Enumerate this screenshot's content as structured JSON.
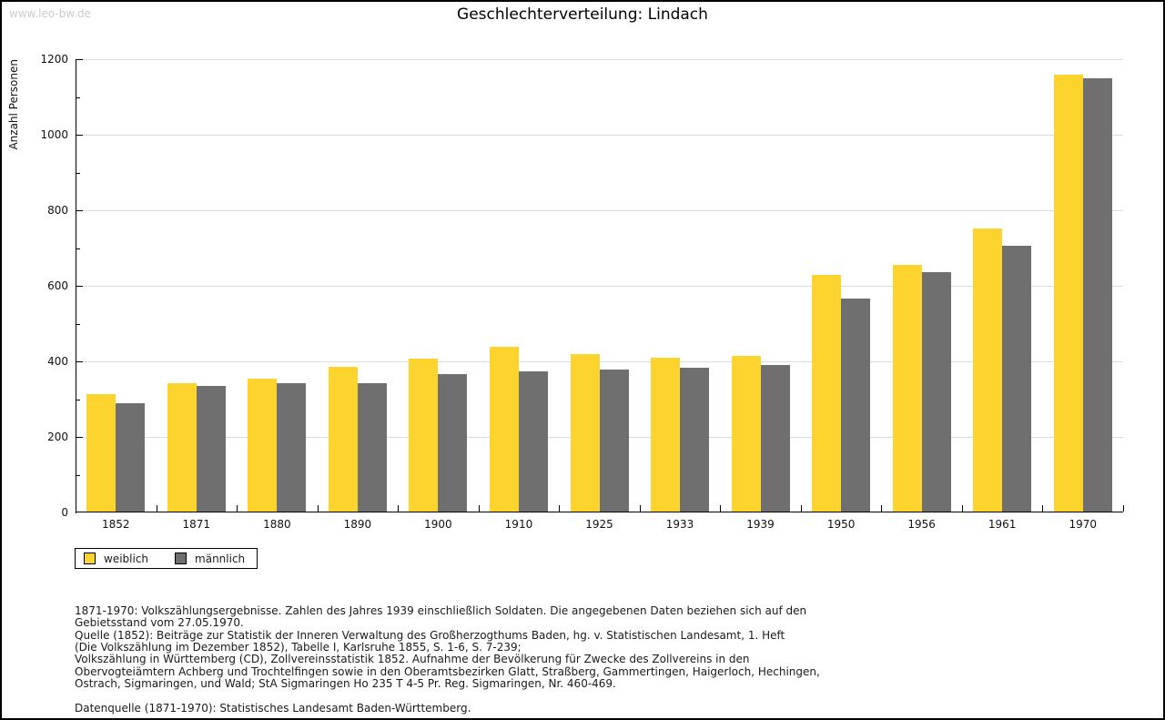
{
  "watermark": "www.leo-bw.de",
  "chart_data": {
    "type": "bar",
    "title": "Geschlechterverteilung: Lindach",
    "xlabel": "",
    "ylabel": "Anzahl Personen",
    "categories": [
      "1852",
      "1871",
      "1880",
      "1890",
      "1900",
      "1910",
      "1925",
      "1933",
      "1939",
      "1950",
      "1956",
      "1961",
      "1970"
    ],
    "series": [
      {
        "name": "weiblich",
        "color": "#FCD42D",
        "values": [
          310,
          340,
          351,
          382,
          405,
          437,
          418,
          407,
          412,
          626,
          652,
          750,
          1157
        ]
      },
      {
        "name": "männlich",
        "color": "#6F6F6F",
        "values": [
          287,
          333,
          339,
          340,
          365,
          370,
          377,
          380,
          387,
          563,
          633,
          703,
          1147
        ]
      }
    ],
    "ylim": [
      0,
      1200
    ],
    "yticks": [
      0,
      200,
      400,
      600,
      800,
      1000,
      1200
    ],
    "yticks_minor": [
      100,
      300,
      500,
      700,
      900,
      1100
    ],
    "grid": "horizontal-major",
    "legend_position": "bottom-left"
  },
  "footnotes": {
    "lines": [
      "1871-1970: Volkszählungsergebnisse. Zahlen des Jahres 1939 einschließlich Soldaten. Die angegebenen Daten beziehen sich auf den",
      "Gebietsstand vom 27.05.1970.",
      "Quelle (1852): Beiträge zur Statistik der Inneren Verwaltung des Großherzogthums Baden, hg. v. Statistischen Landesamt, 1. Heft",
      "(Die Volkszählung im Dezember 1852), Tabelle I, Karlsruhe 1855, S. 1-6, S. 7-239;",
      "Volkszählung in Württemberg (CD), Zollvereinsstatistik 1852. Aufnahme der Bevölkerung für Zwecke des Zollvereins in den",
      "Obervogteiämtern Achberg und Trochtelfingen sowie in den Oberamtsbezirken Glatt, Straßberg, Gammertingen, Haigerloch, Hechingen,",
      "Ostrach, Sigmaringen, und Wald; StA Sigmaringen Ho 235 T 4-5 Pr. Reg. Sigmaringen, Nr. 460-469."
    ],
    "datasource": "Datenquelle (1871-1970): Statistisches Landesamt Baden-Württemberg."
  },
  "colors": {
    "weiblich": "#FCD42D",
    "maennlich": "#6F6F6F",
    "gridline": "#dcdcdc",
    "axis": "#000000",
    "watermark": "#cbcbcb"
  }
}
